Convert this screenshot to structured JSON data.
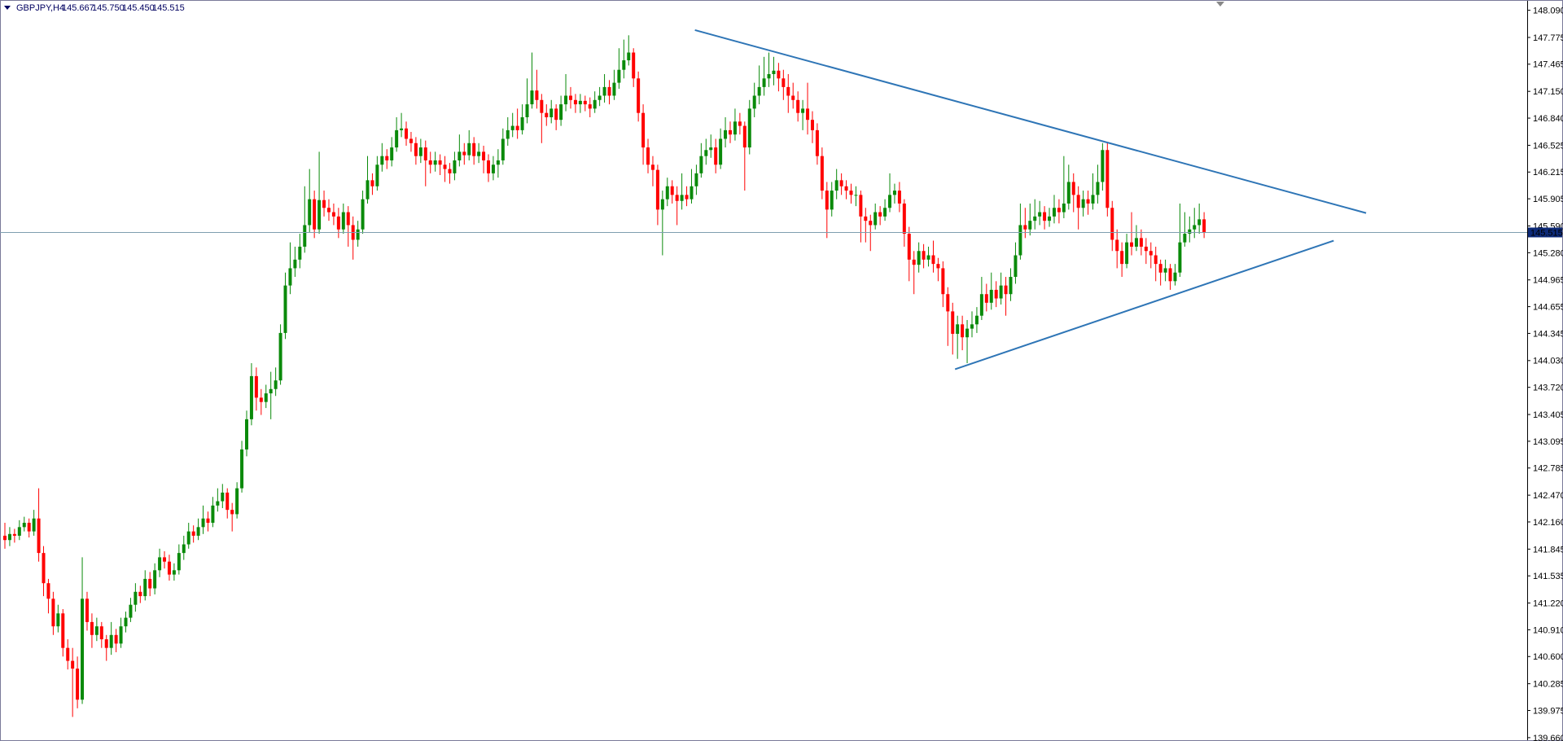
{
  "chart_data": {
    "type": "candlestick",
    "title": "GBPJPY,H4",
    "header_values": [
      "145.667",
      "145.750",
      "145.450",
      "145.515"
    ],
    "up_color": "#0a8a0a",
    "down_color": "#ff0000",
    "grid": false,
    "ylim": [
      139.64,
      148.19
    ],
    "yticks": [
      {
        "value": 148.09,
        "label": "148.090"
      },
      147.775,
      147.465,
      {
        "value": 147.15,
        "label": "147.150"
      },
      {
        "value": 146.84,
        "label": "146.840"
      },
      146.525,
      146.215,
      145.905,
      {
        "value": 145.59,
        "label": "145.590"
      },
      {
        "value": 145.28,
        "label": "145.280"
      },
      144.965,
      144.655,
      144.345,
      {
        "value": 144.03,
        "label": "144.030"
      },
      {
        "value": 143.72,
        "label": "143.720"
      },
      143.405,
      143.095,
      142.785,
      {
        "value": 142.47,
        "label": "142.470"
      },
      {
        "value": 142.16,
        "label": "142.160"
      },
      141.845,
      141.535,
      {
        "value": 141.22,
        "label": "141.220"
      },
      {
        "value": 140.91,
        "label": "140.910"
      },
      {
        "value": 140.6,
        "label": "140.600"
      },
      140.285,
      139.975,
      {
        "value": 139.66,
        "label": "139.660"
      }
    ],
    "current_price": {
      "value": 145.515,
      "label": "145.515"
    },
    "trendline_color": "#2e75b6",
    "trendlines": [
      {
        "x": [
          142.7,
          281.5
        ],
        "y": [
          147.86,
          145.74
        ]
      },
      {
        "x": [
          196.5,
          274.8
        ],
        "y": [
          143.93,
          145.42
        ]
      }
    ],
    "open": [
      142.0,
      141.95,
      142.02,
      142.0,
      142.1,
      142.15,
      142.05,
      142.2,
      141.8,
      141.45,
      141.27,
      140.95,
      141.1,
      140.7,
      140.55,
      140.46,
      140.1,
      141.27,
      141.0,
      140.85,
      140.95,
      140.8,
      140.7,
      140.85,
      140.75,
      140.95,
      141.05,
      141.2,
      141.35,
      141.3,
      141.5,
      141.39,
      141.6,
      141.75,
      141.7,
      141.55,
      141.6,
      141.8,
      141.9,
      142.05,
      142.0,
      142.1,
      142.2,
      142.15,
      142.35,
      142.4,
      142.5,
      142.3,
      142.25,
      142.55,
      143.0,
      143.35,
      143.85,
      143.6,
      143.55,
      143.65,
      143.7,
      143.8,
      144.35,
      144.9,
      145.1,
      145.2,
      145.35,
      145.6,
      145.9,
      145.55,
      145.89,
      145.8,
      145.75,
      145.7,
      145.55,
      145.75,
      145.6,
      145.43,
      145.55,
      145.9,
      146.12,
      146.05,
      146.3,
      146.4,
      146.35,
      146.5,
      146.7,
      146.72,
      146.6,
      146.55,
      146.4,
      146.5,
      146.35,
      146.3,
      146.35,
      146.3,
      146.25,
      146.2,
      146.35,
      146.45,
      146.41,
      146.55,
      146.4,
      146.45,
      146.35,
      146.2,
      146.3,
      146.35,
      146.6,
      146.7,
      146.75,
      146.7,
      146.85,
      147.0,
      147.16,
      147.05,
      146.9,
      146.85,
      146.95,
      146.82,
      147.0,
      147.1,
      147.05,
      147.0,
      147.04,
      147.0,
      146.95,
      147.05,
      147.1,
      147.2,
      147.1,
      147.25,
      147.4,
      147.51,
      147.6,
      147.3,
      146.9,
      146.5,
      146.3,
      146.24,
      145.78,
      145.9,
      146.05,
      145.95,
      145.88,
      145.95,
      145.9,
      146.05,
      146.2,
      146.4,
      146.47,
      146.5,
      146.3,
      146.6,
      146.7,
      146.65,
      146.8,
      146.75,
      146.5,
      146.95,
      147.1,
      147.2,
      147.3,
      147.35,
      147.39,
      147.3,
      147.2,
      147.1,
      147.05,
      146.9,
      146.95,
      146.82,
      146.7,
      146.4,
      146.0,
      145.78,
      146.0,
      146.12,
      146.05,
      146.0,
      145.95,
      145.95,
      145.7,
      145.65,
      145.6,
      145.75,
      145.7,
      145.8,
      145.95,
      146.0,
      145.85,
      145.5,
      145.2,
      145.14,
      145.3,
      145.2,
      145.25,
      145.15,
      145.1,
      144.8,
      144.6,
      144.34,
      144.45,
      144.3,
      144.4,
      144.45,
      144.55,
      144.8,
      144.7,
      144.85,
      144.75,
      144.9,
      144.8,
      145.0,
      145.25,
      145.6,
      145.55,
      145.65,
      145.7,
      145.75,
      145.65,
      145.7,
      145.8,
      145.75,
      145.85,
      146.1,
      145.95,
      145.8,
      145.9,
      145.85,
      145.95,
      146.1,
      146.47,
      145.8,
      145.43,
      145.3,
      145.15,
      145.4,
      145.35,
      145.45,
      145.35,
      145.3,
      145.25,
      145.15,
      145.05,
      145.1,
      144.95,
      145.05,
      145.4,
      145.5,
      145.55,
      145.6,
      145.667
    ],
    "high": [
      142.15,
      142.1,
      142.08,
      142.18,
      142.22,
      142.2,
      142.3,
      142.55,
      141.88,
      141.5,
      141.35,
      141.2,
      141.15,
      140.8,
      140.7,
      140.6,
      141.75,
      141.35,
      141.1,
      141.05,
      141.0,
      140.85,
      141.0,
      140.92,
      141.05,
      141.12,
      141.28,
      141.45,
      141.42,
      141.6,
      141.58,
      141.68,
      141.85,
      141.82,
      141.78,
      141.68,
      141.9,
      142.0,
      142.15,
      142.12,
      142.2,
      142.35,
      142.28,
      142.45,
      142.55,
      142.6,
      142.55,
      142.38,
      142.62,
      143.1,
      143.45,
      144.0,
      143.95,
      143.7,
      143.75,
      143.9,
      143.95,
      144.45,
      145.05,
      145.4,
      145.35,
      145.5,
      146.05,
      146.25,
      146.0,
      146.45,
      146.0,
      145.9,
      145.85,
      145.8,
      145.85,
      145.82,
      145.7,
      145.65,
      146.0,
      146.4,
      146.2,
      146.4,
      146.55,
      146.48,
      146.62,
      146.85,
      146.9,
      146.8,
      146.68,
      146.62,
      146.6,
      146.58,
      146.45,
      146.45,
      146.42,
      146.4,
      146.32,
      146.45,
      146.65,
      146.55,
      146.7,
      146.62,
      146.55,
      146.52,
      146.42,
      146.4,
      146.48,
      146.72,
      146.85,
      146.9,
      146.95,
      147.0,
      147.3,
      147.6,
      147.4,
      147.12,
      147.0,
      147.05,
      147.0,
      147.1,
      147.35,
      147.2,
      147.12,
      147.12,
      147.1,
      147.08,
      147.15,
      147.2,
      147.35,
      147.28,
      147.4,
      147.65,
      147.75,
      147.8,
      147.65,
      147.38,
      147.0,
      146.6,
      146.4,
      146.3,
      146.0,
      146.15,
      146.12,
      146.05,
      146.2,
      146.05,
      146.25,
      146.3,
      146.55,
      146.6,
      146.65,
      146.6,
      146.72,
      146.85,
      146.8,
      146.95,
      146.9,
      146.8,
      147.05,
      147.25,
      147.45,
      147.55,
      147.6,
      147.55,
      147.48,
      147.4,
      147.35,
      147.25,
      147.15,
      147.05,
      147.25,
      146.92,
      146.78,
      146.5,
      146.1,
      146.1,
      146.25,
      146.2,
      146.12,
      146.08,
      146.05,
      146.0,
      145.8,
      145.72,
      145.85,
      145.82,
      145.9,
      146.2,
      146.08,
      146.1,
      145.9,
      145.58,
      145.3,
      145.4,
      145.38,
      145.35,
      145.42,
      145.22,
      145.18,
      144.88,
      144.7,
      144.55,
      144.55,
      144.5,
      144.6,
      144.65,
      145.0,
      144.92,
      145.05,
      144.95,
      145.05,
      145.0,
      145.1,
      145.4,
      145.85,
      145.8,
      145.85,
      145.9,
      145.88,
      145.82,
      145.8,
      145.95,
      145.9,
      146.4,
      146.3,
      146.2,
      146.05,
      146.0,
      146.0,
      146.2,
      146.3,
      146.55,
      146.55,
      145.88,
      145.55,
      145.4,
      145.5,
      145.75,
      145.6,
      145.55,
      145.45,
      145.4,
      145.35,
      145.2,
      145.2,
      145.15,
      145.15,
      145.85,
      145.75,
      145.7,
      145.8,
      145.85,
      145.75
    ],
    "low": [
      141.85,
      141.88,
      141.92,
      141.95,
      142.05,
      141.98,
      142.0,
      141.7,
      141.3,
      141.1,
      140.85,
      140.88,
      140.6,
      140.45,
      139.9,
      140.0,
      140.05,
      140.9,
      140.7,
      140.78,
      140.7,
      140.55,
      140.62,
      140.65,
      140.7,
      140.88,
      141.0,
      141.12,
      141.22,
      141.25,
      141.3,
      141.32,
      141.52,
      141.62,
      141.48,
      141.48,
      141.55,
      141.72,
      141.85,
      141.92,
      141.95,
      142.02,
      142.05,
      142.1,
      142.28,
      142.32,
      142.2,
      142.05,
      142.2,
      142.5,
      142.92,
      143.28,
      143.45,
      143.4,
      143.48,
      143.35,
      143.62,
      143.75,
      144.28,
      144.8,
      145.0,
      145.1,
      145.28,
      145.52,
      145.45,
      145.5,
      145.7,
      145.65,
      145.6,
      145.45,
      145.5,
      145.35,
      145.2,
      145.35,
      145.5,
      145.85,
      145.95,
      146.0,
      146.22,
      146.25,
      146.28,
      146.45,
      146.62,
      146.52,
      146.45,
      146.3,
      146.32,
      146.05,
      146.2,
      146.22,
      146.18,
      146.1,
      146.08,
      146.12,
      146.28,
      146.3,
      146.35,
      146.3,
      146.32,
      146.2,
      146.1,
      146.12,
      146.15,
      146.3,
      146.52,
      146.62,
      146.6,
      146.65,
      146.78,
      146.95,
      146.95,
      146.55,
      146.75,
      146.78,
      146.7,
      146.75,
      146.92,
      146.95,
      146.9,
      146.9,
      146.92,
      146.85,
      146.9,
      146.98,
      147.02,
      147.0,
      147.05,
      147.18,
      147.3,
      147.45,
      147.2,
      146.8,
      146.3,
      146.2,
      146.05,
      145.6,
      145.25,
      145.82,
      145.85,
      145.6,
      145.78,
      145.82,
      145.85,
      145.95,
      146.15,
      146.3,
      146.38,
      146.2,
      146.25,
      146.5,
      146.55,
      146.58,
      146.65,
      146.0,
      146.42,
      146.85,
      147.0,
      147.1,
      147.2,
      147.22,
      147.15,
      147.05,
      146.9,
      146.95,
      146.8,
      146.7,
      146.65,
      146.55,
      146.3,
      145.9,
      145.45,
      145.7,
      145.9,
      145.95,
      145.9,
      145.85,
      145.82,
      145.4,
      145.4,
      145.3,
      145.55,
      145.6,
      145.65,
      145.75,
      145.85,
      145.75,
      145.35,
      144.95,
      144.8,
      145.05,
      145.1,
      145.12,
      145.05,
      144.95,
      144.65,
      144.2,
      144.1,
      144.05,
      144.15,
      144.0,
      144.3,
      144.35,
      144.5,
      144.6,
      144.62,
      144.65,
      144.68,
      144.55,
      144.72,
      144.92,
      145.2,
      145.45,
      145.48,
      145.55,
      145.6,
      145.55,
      145.58,
      145.62,
      145.62,
      145.68,
      145.78,
      145.75,
      145.55,
      145.7,
      145.72,
      145.78,
      145.85,
      146.0,
      145.7,
      145.3,
      145.1,
      145.0,
      145.1,
      145.25,
      145.3,
      145.25,
      145.15,
      145.1,
      144.95,
      144.9,
      144.95,
      144.85,
      144.9,
      145.0,
      145.35,
      145.4,
      145.45,
      145.5,
      145.45
    ],
    "close": [
      141.95,
      142.02,
      142.0,
      142.1,
      142.15,
      142.05,
      142.2,
      141.8,
      141.45,
      141.27,
      140.95,
      141.1,
      140.7,
      140.55,
      140.46,
      140.1,
      141.27,
      141.0,
      140.85,
      140.95,
      140.8,
      140.7,
      140.85,
      140.75,
      140.95,
      141.05,
      141.2,
      141.35,
      141.3,
      141.5,
      141.39,
      141.6,
      141.75,
      141.7,
      141.55,
      141.6,
      141.8,
      141.9,
      142.05,
      142.0,
      142.1,
      142.2,
      142.15,
      142.35,
      142.4,
      142.5,
      142.3,
      142.25,
      142.55,
      143.0,
      143.35,
      143.85,
      143.6,
      143.55,
      143.65,
      143.7,
      143.8,
      144.35,
      144.9,
      145.1,
      145.2,
      145.35,
      145.6,
      145.9,
      145.55,
      145.89,
      145.8,
      145.75,
      145.7,
      145.55,
      145.75,
      145.6,
      145.43,
      145.55,
      145.9,
      146.12,
      146.05,
      146.3,
      146.4,
      146.35,
      146.5,
      146.7,
      146.72,
      146.6,
      146.55,
      146.4,
      146.5,
      146.35,
      146.3,
      146.35,
      146.3,
      146.25,
      146.2,
      146.35,
      146.45,
      146.41,
      146.55,
      146.4,
      146.45,
      146.35,
      146.2,
      146.3,
      146.35,
      146.6,
      146.7,
      146.75,
      146.7,
      146.85,
      147.0,
      147.16,
      147.05,
      146.9,
      146.85,
      146.95,
      146.82,
      147.0,
      147.1,
      147.05,
      147.0,
      147.04,
      147.0,
      146.95,
      147.05,
      147.1,
      147.2,
      147.1,
      147.25,
      147.4,
      147.51,
      147.6,
      147.3,
      146.9,
      146.5,
      146.3,
      146.24,
      145.78,
      145.9,
      146.05,
      145.95,
      145.88,
      145.95,
      145.9,
      146.05,
      146.2,
      146.4,
      146.47,
      146.5,
      146.3,
      146.6,
      146.7,
      146.65,
      146.8,
      146.75,
      146.5,
      146.95,
      147.1,
      147.2,
      147.3,
      147.35,
      147.39,
      147.3,
      147.2,
      147.1,
      147.05,
      146.9,
      146.95,
      146.82,
      146.7,
      146.4,
      146.0,
      145.78,
      146.0,
      146.12,
      146.05,
      146.0,
      145.95,
      145.95,
      145.7,
      145.65,
      145.6,
      145.75,
      145.7,
      145.8,
      145.95,
      146.0,
      145.85,
      145.5,
      145.2,
      145.14,
      145.3,
      145.2,
      145.25,
      145.15,
      145.1,
      144.8,
      144.6,
      144.34,
      144.45,
      144.3,
      144.4,
      144.45,
      144.55,
      144.8,
      144.7,
      144.85,
      144.75,
      144.9,
      144.8,
      145.0,
      145.25,
      145.6,
      145.55,
      145.65,
      145.7,
      145.75,
      145.65,
      145.7,
      145.8,
      145.75,
      145.85,
      146.1,
      145.95,
      145.8,
      145.9,
      145.85,
      145.95,
      146.1,
      146.47,
      145.8,
      145.43,
      145.3,
      145.15,
      145.4,
      145.35,
      145.45,
      145.35,
      145.3,
      145.25,
      145.15,
      145.05,
      145.1,
      144.95,
      145.05,
      145.4,
      145.5,
      145.55,
      145.6,
      145.667,
      145.515
    ]
  }
}
